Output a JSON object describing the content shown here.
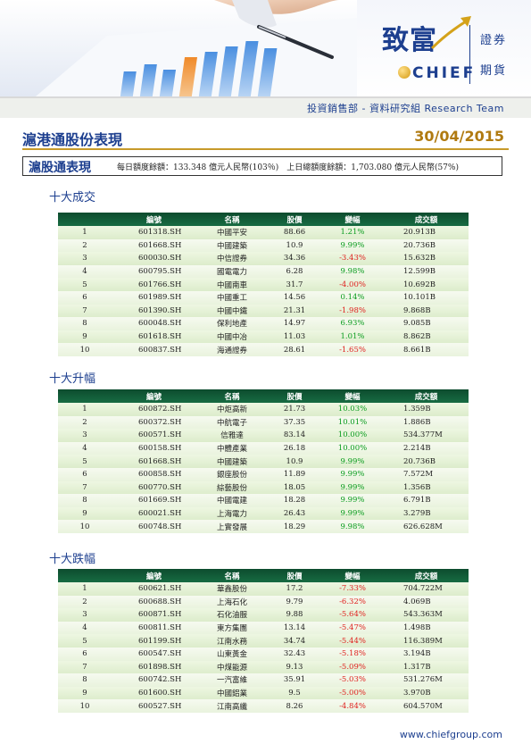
{
  "logo": {
    "cn": "致富",
    "brand": "CHIEF",
    "securities": "證券",
    "futures": "期貨"
  },
  "department": "投資銷售部 - 資料研究組 Research Team",
  "title": "滬港通股份表現",
  "date": "30/04/2015",
  "quota": {
    "label": "滬股通表現",
    "text": "每日額度餘額：133.348 億元人民幣(103％)　上日總額度餘額：1,703.080 億元人民幣(57%)"
  },
  "headers": [
    "",
    "編號",
    "名稱",
    "股價",
    "變幅",
    "成交額"
  ],
  "sections": [
    {
      "title": "十大成交",
      "rows": [
        {
          "rank": "1",
          "code": "601318.SH",
          "name": "中國平安",
          "price": "88.66",
          "change": "1.21%",
          "dir": "up",
          "volume": "20.913B"
        },
        {
          "rank": "2",
          "code": "601668.SH",
          "name": "中國建築",
          "price": "10.9",
          "change": "9.99%",
          "dir": "up",
          "volume": "20.736B"
        },
        {
          "rank": "3",
          "code": "600030.SH",
          "name": "中信證券",
          "price": "34.36",
          "change": "-3.43%",
          "dir": "down",
          "volume": "15.632B"
        },
        {
          "rank": "4",
          "code": "600795.SH",
          "name": "國電電力",
          "price": "6.28",
          "change": "9.98%",
          "dir": "up",
          "volume": "12.599B"
        },
        {
          "rank": "5",
          "code": "601766.SH",
          "name": "中國南車",
          "price": "31.7",
          "change": "-4.00%",
          "dir": "down",
          "volume": "10.692B"
        },
        {
          "rank": "6",
          "code": "601989.SH",
          "name": "中國重工",
          "price": "14.56",
          "change": "0.14%",
          "dir": "up",
          "volume": "10.101B"
        },
        {
          "rank": "7",
          "code": "601390.SH",
          "name": "中國中鐵",
          "price": "21.31",
          "change": "-1.98%",
          "dir": "down",
          "volume": "9.868B"
        },
        {
          "rank": "8",
          "code": "600048.SH",
          "name": "保利地產",
          "price": "14.97",
          "change": "6.93%",
          "dir": "up",
          "volume": "9.085B"
        },
        {
          "rank": "9",
          "code": "601618.SH",
          "name": "中國中冶",
          "price": "11.03",
          "change": "1.01%",
          "dir": "up",
          "volume": "8.862B"
        },
        {
          "rank": "10",
          "code": "600837.SH",
          "name": "海通證券",
          "price": "28.61",
          "change": "-1.65%",
          "dir": "down",
          "volume": "8.661B"
        }
      ]
    },
    {
      "title": "十大升幅",
      "rows": [
        {
          "rank": "1",
          "code": "600872.SH",
          "name": "中炬高新",
          "price": "21.73",
          "change": "10.03%",
          "dir": "up",
          "volume": "1.359B"
        },
        {
          "rank": "2",
          "code": "600372.SH",
          "name": "中航電子",
          "price": "37.35",
          "change": "10.01%",
          "dir": "up",
          "volume": "1.886B"
        },
        {
          "rank": "3",
          "code": "600571.SH",
          "name": "信雅達",
          "price": "83.14",
          "change": "10.00%",
          "dir": "up",
          "volume": "534.377M"
        },
        {
          "rank": "4",
          "code": "600158.SH",
          "name": "中體產業",
          "price": "26.18",
          "change": "10.00%",
          "dir": "up",
          "volume": "2.214B"
        },
        {
          "rank": "5",
          "code": "601668.SH",
          "name": "中國建築",
          "price": "10.9",
          "change": "9.99%",
          "dir": "up",
          "volume": "20.736B"
        },
        {
          "rank": "6",
          "code": "600858.SH",
          "name": "銀座股份",
          "price": "11.89",
          "change": "9.99%",
          "dir": "up",
          "volume": "7.572M"
        },
        {
          "rank": "7",
          "code": "600770.SH",
          "name": "綜藝股份",
          "price": "18.05",
          "change": "9.99%",
          "dir": "up",
          "volume": "1.356B"
        },
        {
          "rank": "8",
          "code": "601669.SH",
          "name": "中國電建",
          "price": "18.28",
          "change": "9.99%",
          "dir": "up",
          "volume": "6.791B"
        },
        {
          "rank": "9",
          "code": "600021.SH",
          "name": "上海電力",
          "price": "26.43",
          "change": "9.99%",
          "dir": "up",
          "volume": "3.279B"
        },
        {
          "rank": "10",
          "code": "600748.SH",
          "name": "上實發展",
          "price": "18.29",
          "change": "9.98%",
          "dir": "up",
          "volume": "626.628M"
        }
      ]
    },
    {
      "title": "十大跌幅",
      "rows": [
        {
          "rank": "1",
          "code": "600621.SH",
          "name": "華鑫股份",
          "price": "17.2",
          "change": "-7.33%",
          "dir": "down",
          "volume": "704.722M"
        },
        {
          "rank": "2",
          "code": "600688.SH",
          "name": "上海石化",
          "price": "9.79",
          "change": "-6.32%",
          "dir": "down",
          "volume": "4.069B"
        },
        {
          "rank": "3",
          "code": "600871.SH",
          "name": "石化油服",
          "price": "9.88",
          "change": "-5.64%",
          "dir": "down",
          "volume": "543.363M"
        },
        {
          "rank": "4",
          "code": "600811.SH",
          "name": "東方集團",
          "price": "13.14",
          "change": "-5.47%",
          "dir": "down",
          "volume": "1.498B"
        },
        {
          "rank": "5",
          "code": "601199.SH",
          "name": "江南水務",
          "price": "34.74",
          "change": "-5.44%",
          "dir": "down",
          "volume": "116.389M"
        },
        {
          "rank": "6",
          "code": "600547.SH",
          "name": "山東黃金",
          "price": "32.43",
          "change": "-5.18%",
          "dir": "down",
          "volume": "3.194B"
        },
        {
          "rank": "7",
          "code": "601898.SH",
          "name": "中煤能源",
          "price": "9.13",
          "change": "-5.09%",
          "dir": "down",
          "volume": "1.317B"
        },
        {
          "rank": "8",
          "code": "600742.SH",
          "name": "一汽富維",
          "price": "35.91",
          "change": "-5.03%",
          "dir": "down",
          "volume": "531.276M"
        },
        {
          "rank": "9",
          "code": "601600.SH",
          "name": "中國鋁業",
          "price": "9.5",
          "change": "-5.00%",
          "dir": "down",
          "volume": "3.970B"
        },
        {
          "rank": "10",
          "code": "600527.SH",
          "name": "江南高纖",
          "price": "8.26",
          "change": "-4.84%",
          "dir": "down",
          "volume": "604.570M"
        }
      ]
    }
  ],
  "footer": "www.chiefgroup.com"
}
